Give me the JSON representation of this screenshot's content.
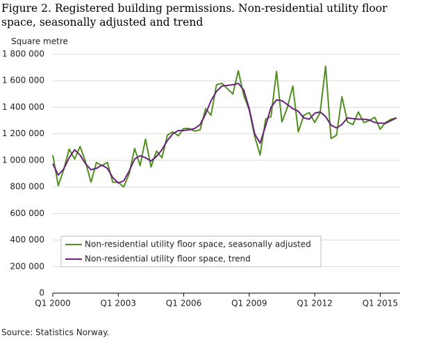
{
  "chart_data": {
    "type": "line",
    "title": "Figure 2. Registered building permissions. Non-residential utility floor space, seasonally adjusted and trend",
    "y_label": "Square metre",
    "source": "Source: Statistics Norway.",
    "categories": [
      "Q1 2000",
      null,
      null,
      null,
      null,
      null,
      null,
      null,
      null,
      null,
      null,
      null,
      "Q1 2003",
      null,
      null,
      null,
      null,
      null,
      null,
      null,
      null,
      null,
      null,
      null,
      "Q1 2006",
      null,
      null,
      null,
      null,
      null,
      null,
      null,
      null,
      null,
      null,
      null,
      "Q1 2009",
      null,
      null,
      null,
      null,
      null,
      null,
      null,
      null,
      null,
      null,
      null,
      "Q1 2012",
      null,
      null,
      null,
      null,
      null,
      null,
      null,
      null,
      null,
      null,
      null,
      "Q1 2015",
      null,
      null,
      null
    ],
    "series": [
      {
        "name": "Non-residential utility floor space, seasonally adjusted",
        "color": "#4f8f1f",
        "values": [
          1040000,
          810000,
          930000,
          1085000,
          1010000,
          1105000,
          990000,
          835000,
          985000,
          960000,
          985000,
          835000,
          835000,
          800000,
          900000,
          1090000,
          960000,
          1160000,
          950000,
          1070000,
          1020000,
          1190000,
          1215000,
          1185000,
          1240000,
          1240000,
          1220000,
          1230000,
          1390000,
          1340000,
          1570000,
          1580000,
          1540000,
          1500000,
          1675000,
          1490000,
          1380000,
          1180000,
          1040000,
          1310000,
          1330000,
          1670000,
          1290000,
          1400000,
          1560000,
          1215000,
          1340000,
          1360000,
          1285000,
          1360000,
          1710000,
          1165000,
          1190000,
          1480000,
          1290000,
          1270000,
          1365000,
          1285000,
          1300000,
          1325000,
          1235000,
          1285000,
          1310000,
          1320000
        ]
      },
      {
        "name": "Non-residential utility floor space, trend",
        "color": "#6b1f7c",
        "values": [
          975000,
          890000,
          935000,
          1020000,
          1080000,
          1040000,
          975000,
          930000,
          940000,
          965000,
          940000,
          870000,
          830000,
          845000,
          920000,
          1010000,
          1035000,
          1020000,
          995000,
          1030000,
          1080000,
          1150000,
          1200000,
          1225000,
          1225000,
          1230000,
          1240000,
          1270000,
          1350000,
          1450000,
          1520000,
          1560000,
          1565000,
          1570000,
          1580000,
          1530000,
          1390000,
          1200000,
          1130000,
          1260000,
          1400000,
          1455000,
          1450000,
          1420000,
          1390000,
          1370000,
          1320000,
          1310000,
          1355000,
          1365000,
          1330000,
          1265000,
          1245000,
          1270000,
          1320000,
          1315000,
          1310000,
          1310000,
          1305000,
          1285000,
          1280000,
          1280000,
          1300000,
          1320000
        ]
      }
    ],
    "ylim": [
      0,
      1800000
    ],
    "yticks": [
      0,
      {
        "value": 200000,
        "label": "200 000"
      },
      {
        "value": 400000,
        "label": "400 000"
      },
      {
        "value": 600000,
        "label": "600 000"
      },
      {
        "value": 800000,
        "label": "800 000"
      },
      {
        "value": 1000000,
        "label": "1 000 000"
      },
      {
        "value": 1200000,
        "label": "1 200 000"
      },
      {
        "value": 1400000,
        "label": "1 400 000"
      },
      {
        "value": 1600000,
        "label": "1 600 000"
      },
      {
        "value": 1800000,
        "label": "1 800 000"
      }
    ],
    "grid": true,
    "legend": "lower left"
  }
}
